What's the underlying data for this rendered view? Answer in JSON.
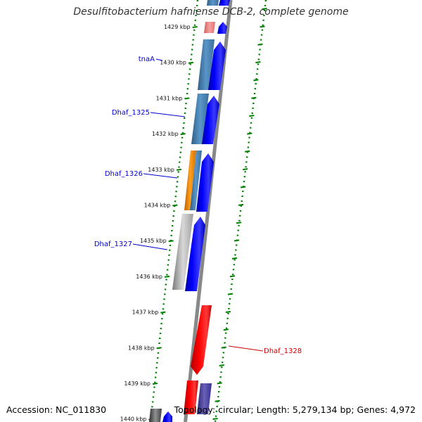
{
  "title": "Desulfitobacterium hafniense DCB-2, complete genome",
  "footer": {
    "accession": "Accession: NC_011830",
    "topology": "Topology: circular; Length: 5,279,134 bp; Genes: 4,972"
  },
  "ruler": [
    {
      "label": "1429 kbp",
      "kbp": 1429
    },
    {
      "label": "1430 kbp",
      "kbp": 1430
    },
    {
      "label": "1431 kbp",
      "kbp": 1431
    },
    {
      "label": "1432 kbp",
      "kbp": 1432
    },
    {
      "label": "1433 kbp",
      "kbp": 1433
    },
    {
      "label": "1434 kbp",
      "kbp": 1434
    },
    {
      "label": "1435 kbp",
      "kbp": 1435
    },
    {
      "label": "1436 kbp",
      "kbp": 1436
    },
    {
      "label": "1437 kbp",
      "kbp": 1437
    },
    {
      "label": "1438 kbp",
      "kbp": 1438
    },
    {
      "label": "1439 kbp",
      "kbp": 1439
    },
    {
      "label": "1440 kbp",
      "kbp": 1440
    }
  ],
  "gene_labels": [
    {
      "text": "tnaA",
      "color": "#0000cc"
    },
    {
      "text": "Dhaf_1325",
      "color": "#0000cc"
    },
    {
      "text": "Dhaf_1326",
      "color": "#0000cc"
    },
    {
      "text": "Dhaf_1327",
      "color": "#0000cc"
    },
    {
      "text": "Dhaf_1328",
      "color": "#cc0000"
    }
  ],
  "colors": {
    "forward_gene": "#0000ff",
    "reverse_gene": "#ff0000",
    "tick_green": "#008000",
    "backbone": "#888888",
    "steelblue": "#4682b4",
    "orange": "#ff8c00",
    "gray": "#aaaaaa",
    "slateblue": "#483d8b",
    "lightred": "#f08080"
  }
}
